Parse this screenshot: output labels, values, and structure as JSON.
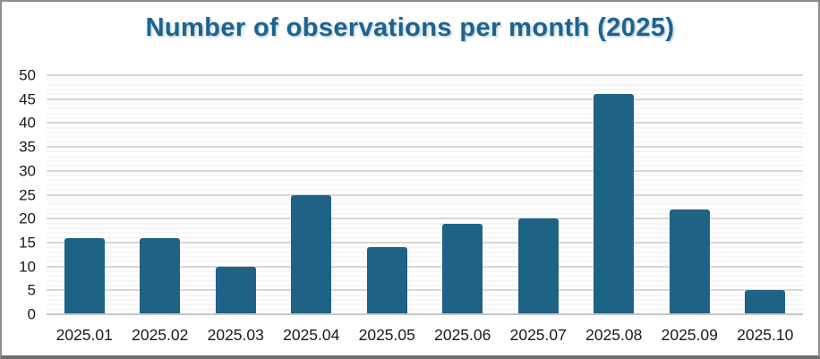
{
  "title": "Number of observations per month (2025)",
  "colors": {
    "bar": "#1E6285",
    "title_text": "#1D6390",
    "axis_text": "#1A1A1A"
  },
  "chart_data": {
    "type": "bar",
    "title": "Number of observations per month (2025)",
    "categories": [
      "2025.01",
      "2025.02",
      "2025.03",
      "2025.04",
      "2025.05",
      "2025.06",
      "2025.07",
      "2025.08",
      "2025.09",
      "2025.10"
    ],
    "values": [
      16,
      16,
      10,
      25,
      14,
      19,
      20,
      46,
      22,
      5
    ],
    "xlabel": "",
    "ylabel": "",
    "ylim": [
      0,
      50
    ],
    "yticks": [
      0,
      5,
      10,
      15,
      20,
      25,
      30,
      35,
      40,
      45,
      50
    ],
    "ytick_step": 5,
    "minor_gridlines_every": 1,
    "grid": true,
    "legend": false
  }
}
